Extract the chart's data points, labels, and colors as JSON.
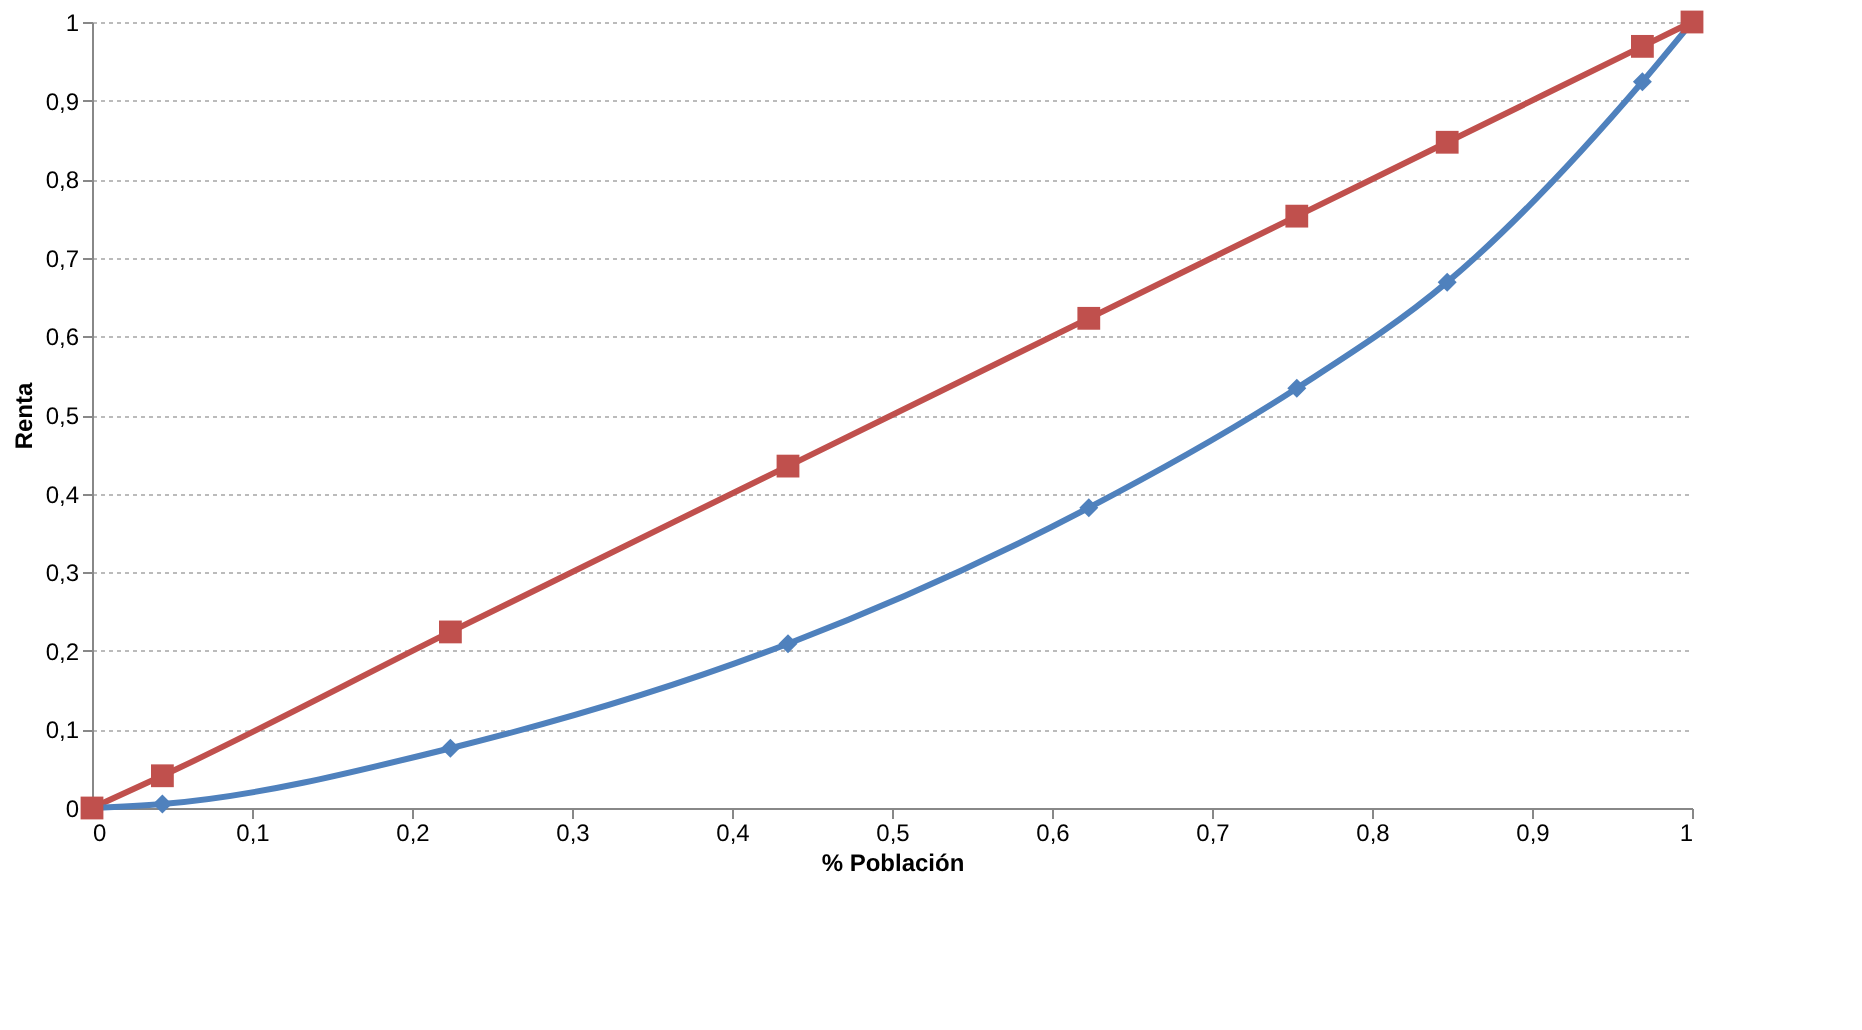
{
  "chart_data": {
    "type": "line",
    "xlabel": "% Población",
    "ylabel": "Renta",
    "x": [
      0,
      0.044,
      0.224,
      0.435,
      0.623,
      0.753,
      0.847,
      0.969,
      1
    ],
    "series": [
      {
        "color": "#c0504d",
        "marker": "square",
        "values": [
          0,
          0.041,
          0.224,
          0.435,
          0.623,
          0.753,
          0.847,
          0.969,
          1
        ]
      },
      {
        "color": "#4f81bd",
        "marker": "diamond",
        "values": [
          0,
          0.005,
          0.076,
          0.209,
          0.382,
          0.534,
          0.669,
          0.924,
          1
        ]
      }
    ],
    "xlim": [
      0,
      1
    ],
    "ylim": [
      0,
      1
    ],
    "xticks": [
      0,
      {
        "value": 0.1,
        "label": "0,1"
      },
      {
        "value": 0.2,
        "label": "0,2"
      },
      {
        "value": 0.3,
        "label": "0,3"
      },
      {
        "value": 0.4,
        "label": "0,4"
      },
      {
        "value": 0.5,
        "label": "0,5"
      },
      {
        "value": 0.6,
        "label": "0,6"
      },
      {
        "value": 0.7,
        "label": "0,7"
      },
      {
        "value": 0.8,
        "label": "0,8"
      },
      {
        "value": 0.9,
        "label": "0,9"
      },
      1
    ],
    "yticks": [
      0,
      {
        "value": 0.1,
        "label": "0,1"
      },
      {
        "value": 0.2,
        "label": "0,2"
      },
      {
        "value": 0.3,
        "label": "0,3"
      },
      {
        "value": 0.4,
        "label": "0,4"
      },
      {
        "value": 0.5,
        "label": "0,5"
      },
      {
        "value": 0.6,
        "label": "0,6"
      },
      {
        "value": 0.7,
        "label": "0,7"
      },
      {
        "value": 0.8,
        "label": "0,8"
      },
      {
        "value": 0.9,
        "label": "0,9"
      },
      1
    ],
    "grid": "y",
    "line_style": "solid"
  }
}
